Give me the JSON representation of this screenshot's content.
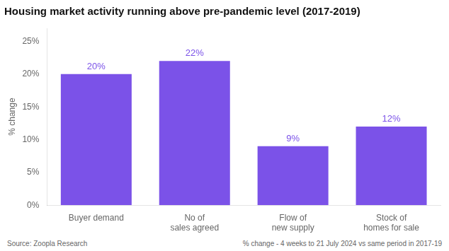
{
  "chart_data": {
    "type": "bar",
    "title": "Housing market activity running above pre-pandemic level (2017-2019)",
    "categories": [
      "Buyer demand",
      "No of\nsales agreed",
      "Flow of\nnew supply",
      "Stock of\nhomes for sale"
    ],
    "values": [
      20,
      22,
      9,
      12
    ],
    "value_labels": [
      "20%",
      "22%",
      "9%",
      "12%"
    ],
    "data_labels": true,
    "color": "#7B52E8",
    "ylabel": "% change",
    "ylim": [
      0,
      27
    ],
    "yticks": [
      {
        "value": 0,
        "label": "0%"
      },
      {
        "value": 5,
        "label": "5%"
      },
      {
        "value": 10,
        "label": "10%"
      },
      {
        "value": 15,
        "label": "15%"
      },
      {
        "value": 20,
        "label": "20%"
      },
      {
        "value": 25,
        "label": "25%"
      }
    ],
    "grid": false,
    "annotations": [
      "Source: Zoopla Research",
      "% change - 4 weeks to 21 July 2024 vs same period in 2017-19"
    ]
  }
}
